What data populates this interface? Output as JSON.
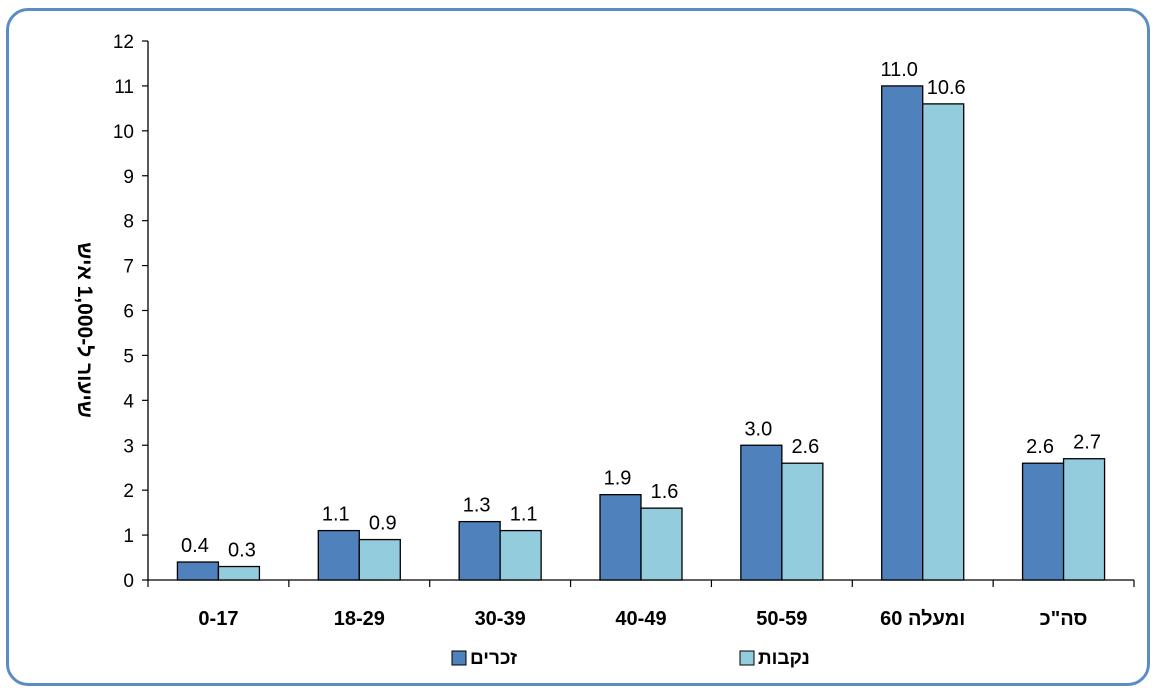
{
  "chart_data": {
    "type": "bar",
    "categories": [
      "0-17",
      "18-29",
      "30-39",
      "40-49",
      "50-59",
      "60 ומעלה",
      "סה\"כ"
    ],
    "series": [
      {
        "name": "זכרים",
        "values": [
          0.4,
          1.1,
          1.3,
          1.9,
          3.0,
          11.0,
          2.6
        ],
        "labels": [
          "0.4",
          "1.1",
          "1.3",
          "1.9",
          "3.0",
          "11.0",
          "2.6"
        ],
        "color": "#4f81bd"
      },
      {
        "name": "נקבות",
        "values": [
          0.3,
          0.9,
          1.1,
          1.6,
          2.6,
          10.6,
          2.7
        ],
        "labels": [
          "0.3",
          "0.9",
          "1.1",
          "1.6",
          "2.6",
          "10.6",
          "2.7"
        ],
        "color": "#93cddd"
      }
    ],
    "title": "",
    "xlabel": "",
    "ylabel": "שיעור ל-1,000 איש",
    "ylim": [
      0,
      12
    ],
    "yticks": [
      0,
      1,
      2,
      3,
      4,
      5,
      6,
      7,
      8,
      9,
      10,
      11,
      12
    ],
    "grid": false,
    "legend": "bottom-center",
    "frame_color": "#5b8cc4"
  }
}
